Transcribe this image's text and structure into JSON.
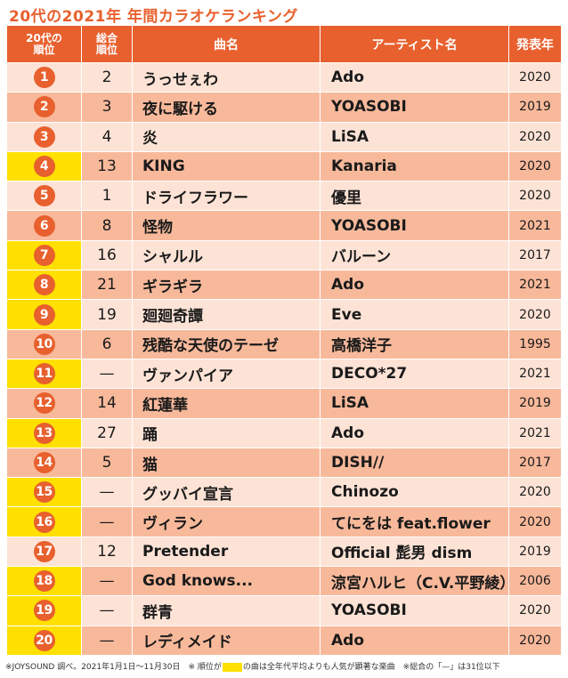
{
  "title": "20代の2021年 年間カラオケランキング",
  "header": {
    "rank_line1": "20代の",
    "rank_line2": "順位",
    "total_line1": "総合",
    "total_line2": "順位",
    "song": "曲名",
    "artist": "アーティスト名",
    "year": "発表年"
  },
  "rows": [
    {
      "rank": "1",
      "total": "2",
      "song": "うっせぇわ",
      "artist": "Ado",
      "year": "2020",
      "highlight": false
    },
    {
      "rank": "2",
      "total": "3",
      "song": "夜に駆ける",
      "artist": "YOASOBI",
      "year": "2019",
      "highlight": false
    },
    {
      "rank": "3",
      "total": "4",
      "song": "炎",
      "artist": "LiSA",
      "year": "2020",
      "highlight": false
    },
    {
      "rank": "4",
      "total": "13",
      "song": "KING",
      "artist": "Kanaria",
      "year": "2020",
      "highlight": true
    },
    {
      "rank": "5",
      "total": "1",
      "song": "ドライフラワー",
      "artist": "優里",
      "year": "2020",
      "highlight": false
    },
    {
      "rank": "6",
      "total": "8",
      "song": "怪物",
      "artist": "YOASOBI",
      "year": "2021",
      "highlight": false
    },
    {
      "rank": "7",
      "total": "16",
      "song": "シャルル",
      "artist": "バルーン",
      "year": "2017",
      "highlight": true
    },
    {
      "rank": "8",
      "total": "21",
      "song": "ギラギラ",
      "artist": "Ado",
      "year": "2021",
      "highlight": true
    },
    {
      "rank": "9",
      "total": "19",
      "song": "廻廻奇譚",
      "artist": "Eve",
      "year": "2020",
      "highlight": true
    },
    {
      "rank": "10",
      "total": "6",
      "song": "残酷な天使のテーゼ",
      "artist": "高橋洋子",
      "year": "1995",
      "highlight": false
    },
    {
      "rank": "11",
      "total": "—",
      "song": "ヴァンパイア",
      "artist": "DECO*27",
      "year": "2021",
      "highlight": true
    },
    {
      "rank": "12",
      "total": "14",
      "song": "紅蓮華",
      "artist": "LiSA",
      "year": "2019",
      "highlight": false
    },
    {
      "rank": "13",
      "total": "27",
      "song": "踊",
      "artist": "Ado",
      "year": "2021",
      "highlight": true
    },
    {
      "rank": "14",
      "total": "5",
      "song": "猫",
      "artist": "DISH//",
      "year": "2017",
      "highlight": false
    },
    {
      "rank": "15",
      "total": "—",
      "song": "グッバイ宣言",
      "artist": "Chinozo",
      "year": "2020",
      "highlight": true
    },
    {
      "rank": "16",
      "total": "—",
      "song": "ヴィラン",
      "artist": "てにをは feat.flower",
      "year": "2020",
      "highlight": true
    },
    {
      "rank": "17",
      "total": "12",
      "song": "Pretender",
      "artist": "Official 髭男 dism",
      "year": "2019",
      "highlight": false
    },
    {
      "rank": "18",
      "total": "—",
      "song": "God knows...",
      "artist": "涼宮ハルヒ（C.V.平野綾）",
      "year": "2006",
      "highlight": true
    },
    {
      "rank": "19",
      "total": "—",
      "song": "群青",
      "artist": "YOASOBI",
      "year": "2020",
      "highlight": true
    },
    {
      "rank": "20",
      "total": "—",
      "song": "レディメイド",
      "artist": "Ado",
      "year": "2020",
      "highlight": true
    }
  ],
  "footnote": {
    "part1": "※JOYSOUND 調べ。2021年1月1日～11月30日　※ 順位が",
    "part2": "の曲は全年代平均よりも人気が顕著な楽曲　※総合の「—」は31位以下"
  },
  "colors": {
    "accent": "#e8602e",
    "row_light": "#fde3d6",
    "row_dark": "#f8b99b",
    "highlight": "#ffe000"
  }
}
